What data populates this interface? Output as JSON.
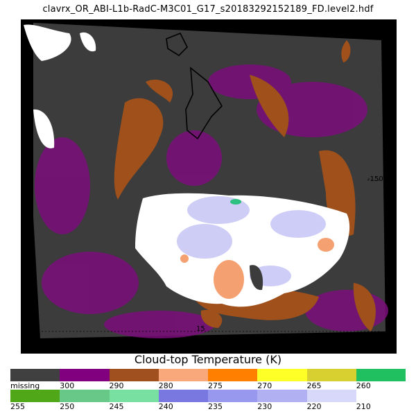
{
  "header": {
    "file_title": "clavrx_OR_ABI-L1b-RadC-M3C01_G17_s20183292152189_FD.level2.hdf"
  },
  "map": {
    "lon_label": "-150",
    "lat_label": "15",
    "colors": {
      "missing": "#3c3c3c",
      "clear_warm": "#7b0e7b",
      "low_cloud": "#a0501a",
      "high_cloud": "#ffffff",
      "cold_cloud": "#c8c8f6",
      "warm_patch": "#f4a070",
      "coastline": "#000000"
    }
  },
  "legend": {
    "title": "Cloud-top Temperature (K)",
    "row1": [
      {
        "label": "missing",
        "color": "#404040"
      },
      {
        "label": "300",
        "color": "#800080"
      },
      {
        "label": "290",
        "color": "#a0501e"
      },
      {
        "label": "280",
        "color": "#f8a87a"
      },
      {
        "label": "275",
        "color": "#ff8000"
      },
      {
        "label": "270",
        "color": "#ffff28"
      },
      {
        "label": "265",
        "color": "#d8d030"
      },
      {
        "label": "260",
        "color": "#20c060"
      }
    ],
    "row2": [
      {
        "label": "255",
        "color": "#50a818"
      },
      {
        "label": "250",
        "color": "#68c888"
      },
      {
        "label": "245",
        "color": "#78e0a0"
      },
      {
        "label": "240",
        "color": "#7878e0"
      },
      {
        "label": "235",
        "color": "#9898ee"
      },
      {
        "label": "230",
        "color": "#b0b0f2"
      },
      {
        "label": "220",
        "color": "#d8d8fa"
      },
      {
        "label": "210",
        "color": "#ffffff"
      }
    ]
  }
}
